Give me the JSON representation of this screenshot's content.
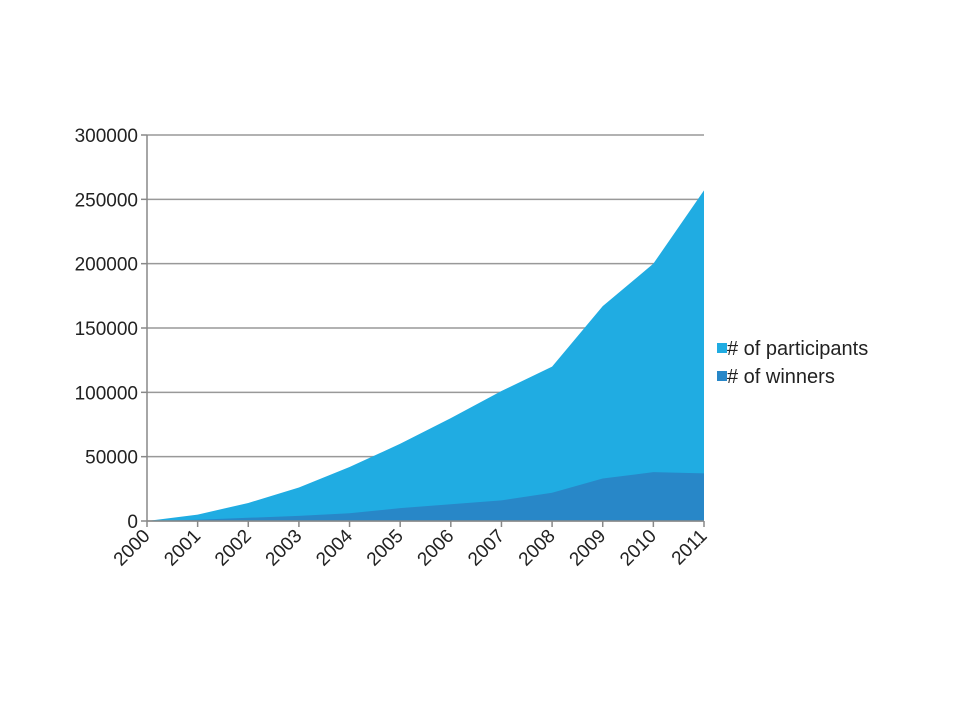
{
  "chart_data": {
    "type": "area",
    "stacked": false,
    "x": [
      "2000",
      "2001",
      "2002",
      "2003",
      "2004",
      "2005",
      "2006",
      "2007",
      "2008",
      "2009",
      "2010",
      "2011"
    ],
    "ylim": [
      0,
      300000
    ],
    "yticks": [
      0,
      50000,
      100000,
      150000,
      200000,
      250000,
      300000
    ],
    "grid": true,
    "legend_position": "right",
    "series": [
      {
        "name": "# of participants",
        "color": "#20ACE2",
        "values": [
          0,
          5000,
          14000,
          26000,
          42000,
          60000,
          80000,
          101000,
          120000,
          167000,
          200000,
          257000
        ]
      },
      {
        "name": "# of winners",
        "color": "#2887C8",
        "values": [
          0,
          1000,
          2500,
          4000,
          6000,
          10000,
          13000,
          16000,
          22000,
          33000,
          38000,
          37000
        ]
      }
    ]
  }
}
